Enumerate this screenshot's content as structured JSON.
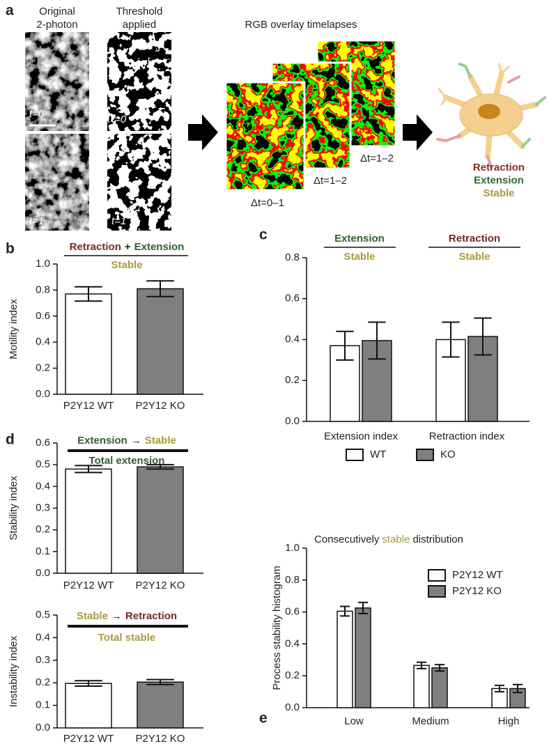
{
  "panel_a": {
    "panel": "a",
    "col1": [
      "Original",
      "2-photon"
    ],
    "col2": [
      "Threshold",
      "applied"
    ],
    "rgb_title": "RGB overlay timelapses",
    "t_labels": [
      "t=0",
      "t=1",
      "t=0",
      "t=1"
    ],
    "dt_labels": [
      "Δt=0–1",
      "Δt=1–2",
      "Δt=1–2"
    ],
    "legend": [
      {
        "text": "Retraction",
        "color": "#8a2a2a"
      },
      {
        "text": "Extension",
        "color": "#2f6a2f"
      },
      {
        "text": "Stable",
        "color": "#a89b3c"
      }
    ]
  },
  "chart_data": [
    {
      "type": "bar",
      "panel": "b",
      "ylabel": "Motility index",
      "categories": [
        "P2Y12 WT",
        "P2Y12 KO"
      ],
      "values": [
        0.77,
        0.81
      ],
      "errors": [
        0.055,
        0.06
      ],
      "colors": [
        "#ffffff",
        "#7f7f7f"
      ],
      "ylim": [
        0,
        1
      ],
      "yticks": [
        {
          "value": 0,
          "label": "0.0"
        },
        0.2,
        0.4,
        0.6,
        0.8,
        {
          "value": 1,
          "label": "1.0"
        }
      ],
      "formulas": [
        {
          "numerator": [
            {
              "text": "Retraction",
              "color": "#7a2424"
            },
            {
              "text": "+",
              "color": "#222222"
            },
            {
              "text": "Extension",
              "color": "#2f5e2f"
            }
          ],
          "denominator": [
            {
              "text": "Stable",
              "color": "#a89b3c"
            }
          ]
        }
      ]
    },
    {
      "type": "bar",
      "panel": "c",
      "categories": [
        "Extension index",
        "Retraction index"
      ],
      "series": [
        {
          "name": "WT",
          "color": "#ffffff",
          "values": [
            0.37,
            0.4
          ],
          "errors": [
            0.07,
            0.085
          ]
        },
        {
          "name": "KO",
          "color": "#7f7f7f",
          "values": [
            0.395,
            0.415
          ],
          "errors": [
            0.09,
            0.09
          ]
        }
      ],
      "ylim": [
        0,
        0.8
      ],
      "yticks": [
        {
          "value": 0,
          "label": "0.0"
        },
        0.2,
        0.4,
        0.6,
        0.8
      ],
      "formulas": [
        {
          "numerator": [
            {
              "text": "Extension",
              "color": "#2f5e2f"
            }
          ],
          "denominator": [
            {
              "text": "Stable",
              "color": "#a89b3c"
            }
          ]
        },
        {
          "numerator": [
            {
              "text": "Retraction",
              "color": "#7a2424"
            }
          ],
          "denominator": [
            {
              "text": "Stable",
              "color": "#a89b3c"
            }
          ]
        }
      ]
    },
    {
      "type": "bar",
      "panel": "d",
      "ylabel": "Stability index",
      "categories": [
        "P2Y12 WT",
        "P2Y12 KO"
      ],
      "values": [
        0.48,
        0.49
      ],
      "errors": [
        0.016,
        0.01
      ],
      "colors": [
        "#ffffff",
        "#7f7f7f"
      ],
      "ylim": [
        0,
        0.6
      ],
      "yticks": [
        {
          "value": 0,
          "label": "0.0"
        },
        0.1,
        0.2,
        0.3,
        0.4,
        0.5,
        0.6
      ],
      "formulas": [
        {
          "numerator": [
            {
              "text": "Extension",
              "color": "#2f5e2f"
            },
            {
              "text": "→",
              "color": "#222222"
            },
            {
              "text": "Stable",
              "color": "#a89b3c"
            }
          ],
          "denominator": [
            {
              "text": "Total extension",
              "color": "#2f5e2f"
            }
          ]
        }
      ]
    },
    {
      "type": "bar",
      "ylabel": "Instability index",
      "categories": [
        "P2Y12 WT",
        "P2Y12 KO"
      ],
      "values": [
        0.197,
        0.203
      ],
      "errors": [
        0.012,
        0.011
      ],
      "colors": [
        "#ffffff",
        "#7f7f7f"
      ],
      "ylim": [
        0,
        0.5
      ],
      "yticks": [
        {
          "value": 0,
          "label": "0.0"
        },
        0.1,
        0.2,
        0.3,
        0.4,
        0.5
      ],
      "formulas": [
        {
          "numerator": [
            {
              "text": "Stable",
              "color": "#a89b3c"
            },
            {
              "text": "→",
              "color": "#222222"
            },
            {
              "text": "Retraction",
              "color": "#7a2424"
            }
          ],
          "denominator": [
            {
              "text": "Total stable",
              "color": "#a89b3c"
            }
          ]
        }
      ]
    },
    {
      "type": "bar",
      "panel": "e",
      "ylabel": "Process stability histogram",
      "title_parts": [
        {
          "text": "Consecutively",
          "color": "#222222"
        },
        {
          "text": "stable",
          "color": "#a89b3c"
        },
        {
          "text": "distribution",
          "color": "#222222"
        }
      ],
      "categories": [
        "Low",
        "Medium",
        "High"
      ],
      "series": [
        {
          "name": "P2Y12 WT",
          "color": "#ffffff",
          "values": [
            0.605,
            0.265,
            0.12
          ],
          "errors": [
            0.03,
            0.02,
            0.02
          ]
        },
        {
          "name": "P2Y12 KO",
          "color": "#7f7f7f",
          "values": [
            0.625,
            0.25,
            0.12
          ],
          "errors": [
            0.035,
            0.02,
            0.025
          ]
        }
      ],
      "ylim": [
        0,
        1
      ],
      "yticks": [
        {
          "value": 0,
          "label": "0.0"
        },
        0.2,
        0.4,
        0.6,
        0.8,
        {
          "value": 1,
          "label": "1.0"
        }
      ]
    }
  ]
}
